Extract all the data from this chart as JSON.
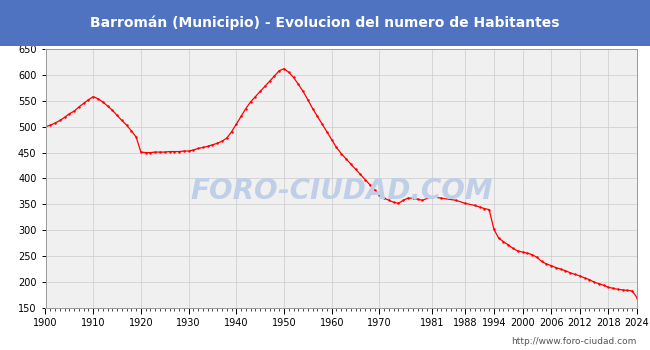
{
  "title": "Barromán (Municipio) - Evolucion del numero de Habitantes",
  "title_color": "#ffffff",
  "title_bg_color": "#4f73c0",
  "line_color": "#ff0000",
  "bg_color": "#ffffff",
  "plot_bg_color": "#f0f0f0",
  "grid_color": "#cccccc",
  "watermark": "FORO-CIUDAD.COM",
  "watermark_color": "#c0cfe8",
  "url": "http://www.foro-ciudad.com",
  "ylim": [
    150,
    650
  ],
  "yticks": [
    150,
    200,
    250,
    300,
    350,
    400,
    450,
    500,
    550,
    600,
    650
  ],
  "xtick_labels": [
    "1900",
    "1910",
    "1920",
    "1930",
    "1940",
    "1950",
    "1960",
    "1970",
    "1981",
    "1988",
    "1994",
    "2000",
    "2006",
    "2012",
    "2018",
    "2024"
  ],
  "years": [
    1900,
    1901,
    1902,
    1903,
    1904,
    1905,
    1906,
    1907,
    1908,
    1909,
    1910,
    1911,
    1912,
    1913,
    1914,
    1915,
    1916,
    1917,
    1918,
    1919,
    1920,
    1921,
    1922,
    1923,
    1924,
    1925,
    1926,
    1927,
    1928,
    1929,
    1930,
    1931,
    1932,
    1933,
    1934,
    1935,
    1936,
    1937,
    1938,
    1939,
    1940,
    1941,
    1942,
    1943,
    1944,
    1945,
    1946,
    1947,
    1948,
    1949,
    1950,
    1951,
    1952,
    1953,
    1954,
    1955,
    1956,
    1957,
    1958,
    1959,
    1960,
    1961,
    1962,
    1963,
    1964,
    1965,
    1966,
    1967,
    1968,
    1969,
    1970,
    1971,
    1972,
    1973,
    1974,
    1975,
    1976,
    1977,
    1978,
    1979,
    1981,
    1983,
    1986,
    1988,
    1990,
    1991,
    1992,
    1993,
    1994,
    1995,
    1996,
    1997,
    1998,
    1999,
    2000,
    2001,
    2002,
    2003,
    2004,
    2005,
    2006,
    2007,
    2008,
    2009,
    2010,
    2011,
    2012,
    2013,
    2014,
    2015,
    2016,
    2017,
    2018,
    2019,
    2020,
    2021,
    2022,
    2023,
    2024
  ],
  "population": [
    500,
    503,
    507,
    512,
    518,
    525,
    530,
    538,
    545,
    552,
    558,
    554,
    548,
    540,
    532,
    522,
    512,
    503,
    492,
    480,
    451,
    450,
    450,
    451,
    451,
    451,
    452,
    452,
    452,
    453,
    453,
    455,
    458,
    460,
    462,
    465,
    468,
    472,
    478,
    490,
    505,
    520,
    535,
    548,
    558,
    568,
    578,
    588,
    598,
    608,
    612,
    605,
    595,
    582,
    568,
    552,
    535,
    520,
    505,
    490,
    475,
    460,
    448,
    438,
    428,
    418,
    408,
    398,
    388,
    378,
    368,
    362,
    358,
    354,
    352,
    358,
    362,
    362,
    360,
    358,
    365,
    362,
    358,
    352,
    348,
    345,
    342,
    340,
    302,
    285,
    278,
    272,
    265,
    260,
    258,
    256,
    253,
    248,
    240,
    235,
    232,
    228,
    225,
    222,
    218,
    215,
    212,
    208,
    205,
    200,
    197,
    194,
    190,
    188,
    186,
    185,
    184,
    183,
    170
  ]
}
